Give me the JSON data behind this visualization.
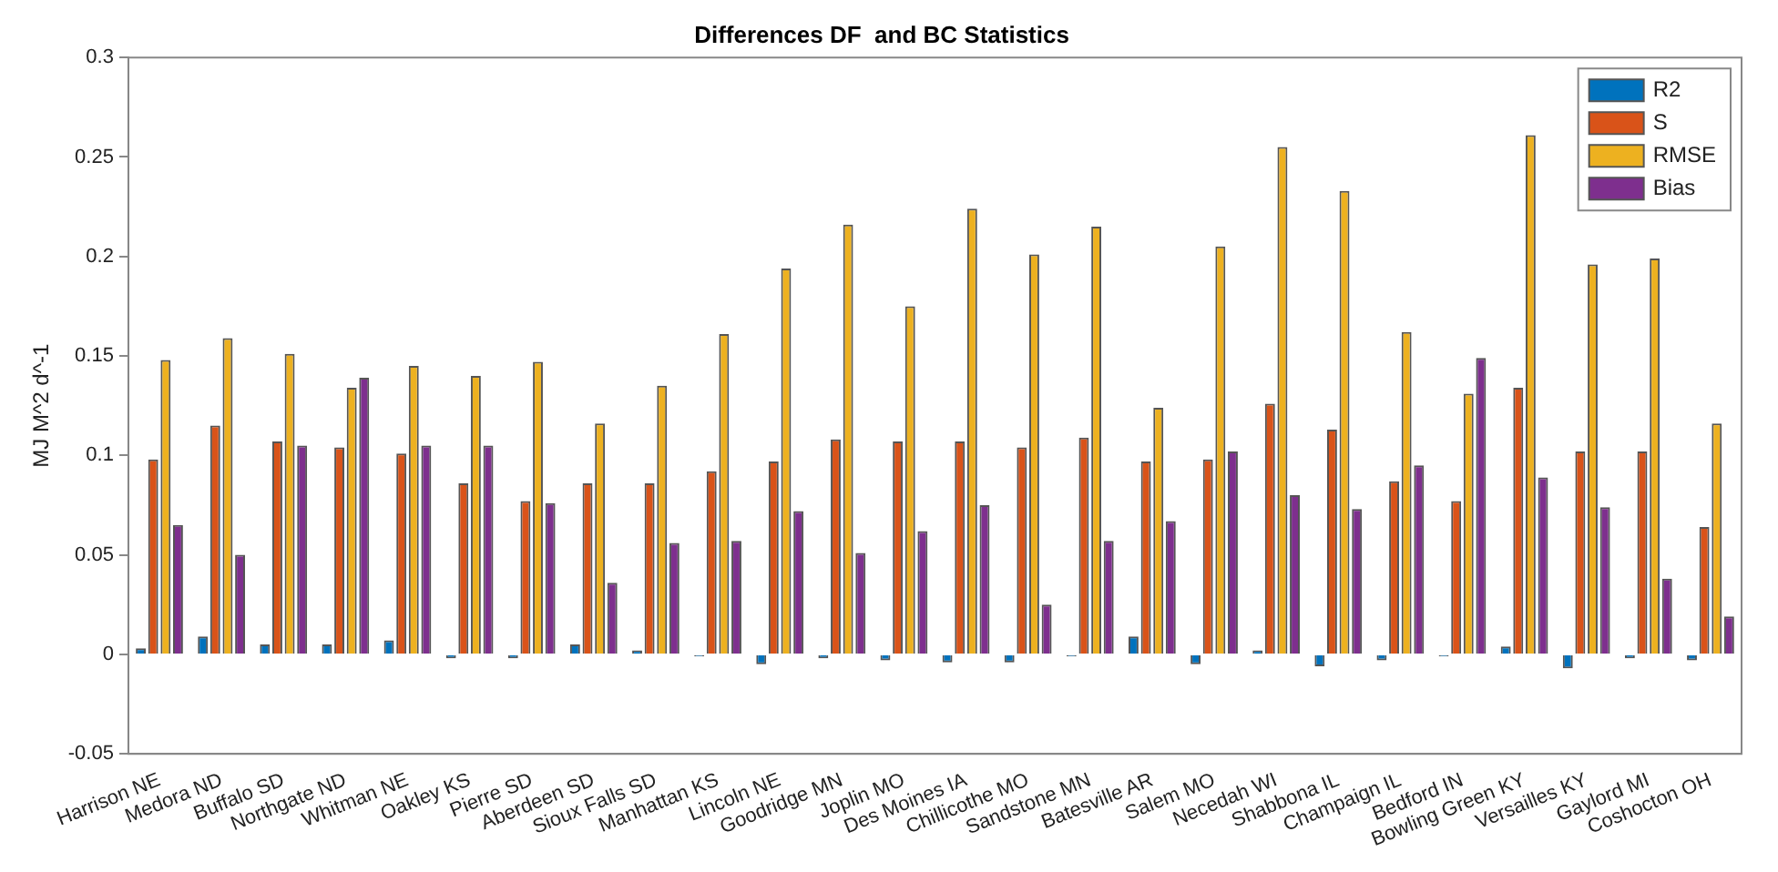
{
  "chart_data": {
    "type": "bar",
    "title": "Differences DF  and BC Statistics",
    "ylabel": "MJ M^2 d^-1",
    "categories": [
      "Harrison NE",
      "Medora ND",
      "Buffalo SD",
      "Northgate ND",
      "Whitman NE",
      "Oakley KS",
      "Pierre SD",
      "Aberdeen SD",
      "Sioux Falls SD",
      "Manhattan KS",
      "Lincoln NE",
      "Goodridge MN",
      "Joplin MO",
      "Des Moines IA",
      "Chillicothe MO",
      "Sandstone MN",
      "Batesville AR",
      "Salem MO",
      "Necedah WI",
      "Shabbona IL",
      "Champaign IL",
      "Bedford IN",
      "Bowling Green KY",
      "Versailles KY",
      "Gaylord MI",
      "Coshocton OH"
    ],
    "series": [
      {
        "name": "R2",
        "color": "#0072bd",
        "values": [
          0.003,
          0.009,
          0.005,
          0.005,
          0.007,
          -0.002,
          -0.002,
          0.005,
          0.002,
          -0.001,
          -0.005,
          -0.002,
          -0.003,
          -0.004,
          -0.004,
          -0.001,
          0.009,
          -0.005,
          0.002,
          -0.006,
          -0.003,
          -0.001,
          0.004,
          -0.007,
          -0.002,
          -0.003
        ]
      },
      {
        "name": "S",
        "color": "#d95319",
        "values": [
          0.098,
          0.115,
          0.107,
          0.104,
          0.101,
          0.086,
          0.077,
          0.086,
          0.086,
          0.092,
          0.097,
          0.108,
          0.107,
          0.107,
          0.104,
          0.109,
          0.097,
          0.098,
          0.126,
          0.113,
          0.087,
          0.077,
          0.134,
          0.102,
          0.102,
          0.064
        ]
      },
      {
        "name": "RMSE",
        "color": "#edb120",
        "values": [
          0.148,
          0.159,
          0.151,
          0.134,
          0.145,
          0.14,
          0.147,
          0.116,
          0.135,
          0.161,
          0.194,
          0.216,
          0.175,
          0.224,
          0.201,
          0.215,
          0.124,
          0.205,
          0.255,
          0.233,
          0.162,
          0.131,
          0.261,
          0.196,
          0.199,
          0.116
        ]
      },
      {
        "name": "Bias",
        "color": "#7e2f8e",
        "values": [
          0.065,
          0.05,
          0.105,
          0.139,
          0.105,
          0.105,
          0.076,
          0.036,
          0.056,
          0.057,
          0.072,
          0.051,
          0.062,
          0.075,
          0.025,
          0.057,
          0.067,
          0.102,
          0.08,
          0.073,
          0.095,
          0.149,
          0.089,
          0.074,
          0.038,
          0.019
        ]
      }
    ],
    "ylim": [
      -0.05,
      0.3
    ],
    "yticks": [
      -0.05,
      0,
      0.05,
      0.1,
      0.15,
      0.2,
      0.25,
      0.3
    ],
    "grid": false,
    "legend": "top right"
  }
}
